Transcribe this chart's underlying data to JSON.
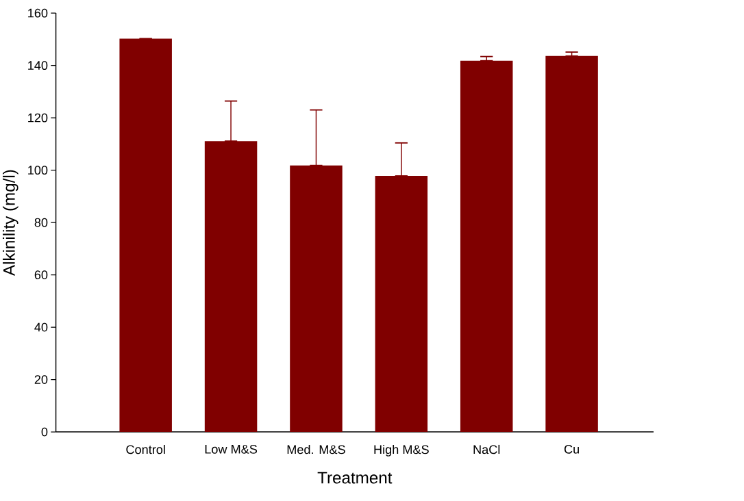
{
  "chart_data": {
    "type": "bar",
    "xlabel": "Treatment",
    "ylabel": "Alkinility (mg/l)",
    "categories": [
      "Control",
      "Low M&S",
      "Med. M&S",
      "High M&S",
      "NaCl",
      "Cu"
    ],
    "values": [
      150.2,
      111.1,
      101.8,
      97.8,
      141.8,
      143.6
    ],
    "errors": [
      null,
      [
        111.1,
        126.4
      ],
      [
        101.8,
        123.0
      ],
      [
        97.8,
        110.4
      ],
      [
        141.8,
        143.4
      ],
      [
        143.6,
        145.1
      ]
    ],
    "color": "#800000",
    "ylim": [
      0,
      160
    ],
    "yticks": [
      0,
      20,
      40,
      60,
      80,
      100,
      120,
      140,
      160
    ]
  }
}
